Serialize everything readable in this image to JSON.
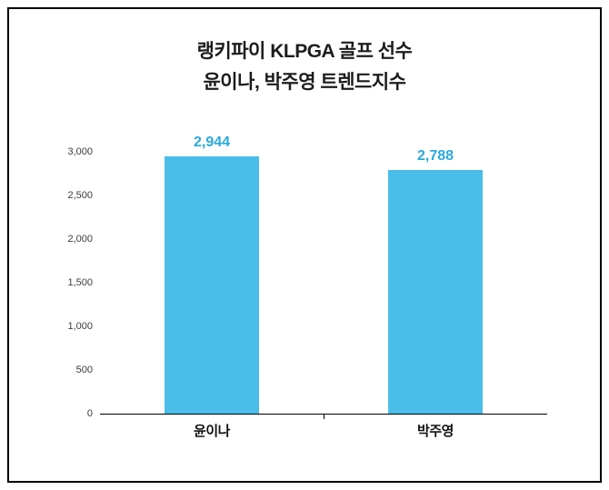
{
  "chart_data": {
    "type": "bar",
    "title_lines": [
      "랭키파이 KLPGA 골프 선수",
      "윤이나, 박주영 트렌드지수"
    ],
    "categories": [
      "윤이나",
      "박주영"
    ],
    "values": [
      2944,
      2788
    ],
    "value_labels": [
      "2,944",
      "2,788"
    ],
    "ylim": [
      0,
      3000
    ],
    "ytick_step": 500,
    "ytick_labels": [
      "0",
      "500",
      "1,000",
      "1,500",
      "2,000",
      "2,500",
      "3,000"
    ],
    "bar_color": "#4bbde9",
    "value_label_color": "#2aa9dd",
    "grid": false,
    "legend": "none",
    "xlabel": "",
    "ylabel": ""
  }
}
